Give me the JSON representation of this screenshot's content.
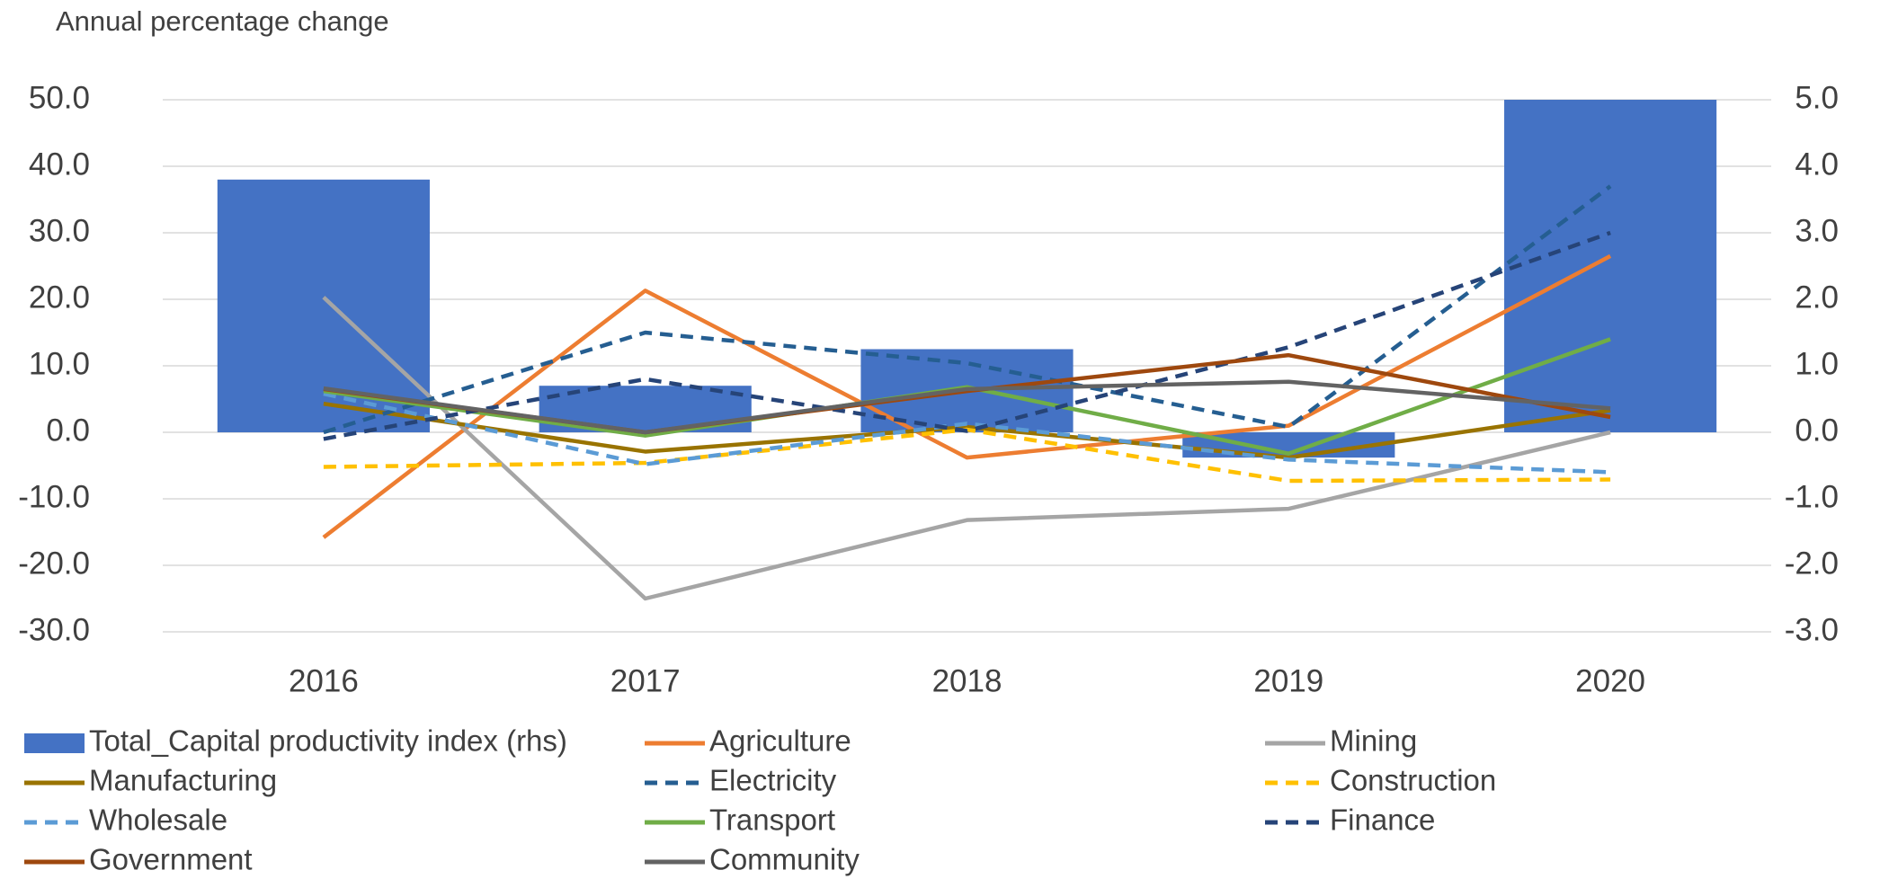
{
  "chart_data": {
    "type": "bar-line",
    "title": "Annual percentage change",
    "categories": [
      "2016",
      "2017",
      "2018",
      "2019",
      "2020"
    ],
    "series": [
      {
        "name": "Total_Capital productivity index (rhs)",
        "type": "bar",
        "axis": "y2",
        "color": "#4472c4",
        "values": [
          3.8,
          0.7,
          1.25,
          -0.38,
          5.0
        ]
      },
      {
        "name": "Agriculture",
        "type": "line",
        "color": "#ed7d31",
        "dashed": false,
        "values": [
          -15.8,
          21.3,
          -3.8,
          1.0,
          26.5
        ]
      },
      {
        "name": "Mining",
        "type": "line",
        "color": "#a5a5a5",
        "dashed": false,
        "values": [
          20.3,
          -25.0,
          -13.2,
          -11.5,
          0.0
        ]
      },
      {
        "name": "Manufacturing",
        "type": "line",
        "color": "#997300",
        "dashed": false,
        "values": [
          4.3,
          -2.9,
          0.8,
          -3.8,
          3.3
        ]
      },
      {
        "name": "Electricity",
        "type": "line",
        "color": "#255e91",
        "dashed": true,
        "values": [
          0.0,
          15.0,
          10.4,
          0.8,
          37.0
        ]
      },
      {
        "name": "Construction",
        "type": "line",
        "color": "#ffc000",
        "dashed": true,
        "values": [
          -5.2,
          -4.6,
          0.4,
          -7.3,
          -7.1
        ]
      },
      {
        "name": "Wholesale",
        "type": "line",
        "color": "#5b9bd5",
        "dashed": true,
        "values": [
          5.8,
          -4.8,
          1.3,
          -4.1,
          -6.0
        ]
      },
      {
        "name": "Transport",
        "type": "line",
        "color": "#70ad47",
        "dashed": false,
        "values": [
          6.2,
          -0.5,
          6.8,
          -3.2,
          14.0
        ]
      },
      {
        "name": "Finance",
        "type": "line",
        "color": "#264478",
        "dashed": true,
        "values": [
          -1.0,
          8.0,
          0.2,
          12.8,
          30.0
        ]
      },
      {
        "name": "Government",
        "type": "line",
        "color": "#9e480e",
        "dashed": false,
        "values": [
          6.5,
          0.0,
          6.2,
          11.6,
          2.3
        ]
      },
      {
        "name": "Community",
        "type": "line",
        "color": "#636363",
        "dashed": false,
        "values": [
          6.6,
          0.0,
          6.5,
          7.6,
          3.6
        ]
      }
    ],
    "ylim": [
      -30,
      50
    ],
    "yticks": [
      {
        "value": -30,
        "label": "-30.0"
      },
      {
        "value": -20,
        "label": "-20.0"
      },
      {
        "value": -10,
        "label": "-10.0"
      },
      {
        "value": 0,
        "label": "0.0"
      },
      {
        "value": 10,
        "label": "10.0"
      },
      {
        "value": 20,
        "label": "20.0"
      },
      {
        "value": 30,
        "label": "30.0"
      },
      {
        "value": 40,
        "label": "40.0"
      },
      {
        "value": 50,
        "label": "50.0"
      }
    ],
    "y2lim": [
      -3,
      5
    ],
    "y2ticks": [
      {
        "value": -3,
        "label": "-3.0"
      },
      {
        "value": -2,
        "label": "-2.0"
      },
      {
        "value": -1,
        "label": "-1.0"
      },
      {
        "value": 0,
        "label": "0.0"
      },
      {
        "value": 1,
        "label": "1.0"
      },
      {
        "value": 2,
        "label": "2.0"
      },
      {
        "value": 3,
        "label": "3.0"
      },
      {
        "value": 4,
        "label": "4.0"
      },
      {
        "value": 5,
        "label": "5.0"
      }
    ],
    "grid": true,
    "legend": "bottom"
  }
}
